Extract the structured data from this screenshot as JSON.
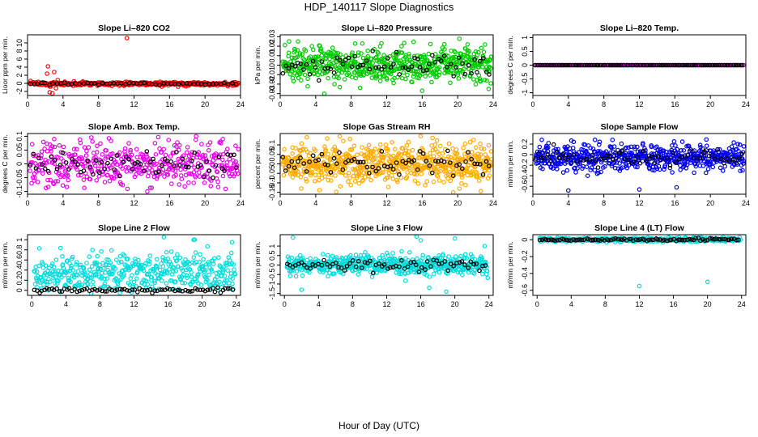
{
  "figure": {
    "title": "HDP_140117  Slope Diagnostics",
    "xlabel": "Hour of Day (UTC)"
  },
  "chart_data": [
    {
      "type": "scatter",
      "title": "Slope Li–820 CO2",
      "ylabel": "Lioor ppm per min.",
      "xlim": [
        0,
        24
      ],
      "ylim": [
        -3,
        12
      ],
      "yticks": [
        -2,
        0,
        2,
        4,
        6,
        8,
        10
      ],
      "xticks": [
        0,
        4,
        8,
        12,
        16,
        20,
        24
      ],
      "main_color": "#ff0000",
      "ref_color": "#000000",
      "main_density": 350,
      "ref_density": 55,
      "center": -0.1,
      "spread": 0.25,
      "ref_spread": 0.15,
      "outliers": [
        [
          2.3,
          4.2
        ],
        [
          2.5,
          -2.2
        ],
        [
          3.0,
          2.8
        ],
        [
          2.8,
          -2.5
        ],
        [
          2.2,
          2.4
        ],
        [
          3.2,
          -1.2
        ],
        [
          2.6,
          -0.8
        ],
        [
          3.4,
          0.8
        ],
        [
          11.2,
          11.2
        ]
      ]
    },
    {
      "type": "scatter",
      "title": "Slope Li–820 Pressure",
      "ylabel": "kPa per min.",
      "xlim": [
        0,
        24
      ],
      "ylim": [
        -0.032,
        0.032
      ],
      "yticks": [
        -0.03,
        -0.02,
        -0.01,
        0.0,
        0.01,
        0.02,
        0.03
      ],
      "xticks": [
        0,
        4,
        8,
        12,
        16,
        20,
        24
      ],
      "main_color": "#00cc00",
      "ref_color": "#000000",
      "main_density": 600,
      "ref_density": 70,
      "center": 0.0,
      "spread": 0.009,
      "ref_spread": 0.006,
      "outliers": [
        [
          1,
          0.025
        ],
        [
          23.5,
          -0.025
        ],
        [
          9,
          -0.024
        ],
        [
          16,
          -0.027
        ],
        [
          18.5,
          0.022
        ]
      ]
    },
    {
      "type": "scatter",
      "title": "Slope Li–820 Temp.",
      "ylabel": "degrees C per min.",
      "xlim": [
        0,
        24
      ],
      "ylim": [
        -1.1,
        1.1
      ],
      "yticks": [
        -1.0,
        -0.5,
        0.0,
        0.5,
        1.0
      ],
      "xticks": [
        0,
        4,
        8,
        12,
        16,
        20,
        24
      ],
      "main_color": "#cc00cc",
      "ref_color": "#000000",
      "main_density": 150,
      "ref_density": 90,
      "center": 0.0,
      "spread": 0.0,
      "ref_spread": 0.0,
      "outliers": []
    },
    {
      "type": "scatter",
      "title": "Slope Amb. Box Temp.",
      "ylabel": "degrees C per min.",
      "xlim": [
        0,
        24
      ],
      "ylim": [
        -0.11,
        0.11
      ],
      "yticks": [
        -0.1,
        -0.05,
        0.0,
        0.05,
        0.1
      ],
      "xticks": [
        0,
        4,
        8,
        12,
        16,
        20,
        24
      ],
      "main_color": "#ee00ee",
      "ref_color": "#000000",
      "main_density": 450,
      "ref_density": 70,
      "center": 0.0,
      "spread": 0.04,
      "ref_spread": 0.025,
      "outliers": [
        [
          19,
          0.1
        ],
        [
          22,
          0.09
        ],
        [
          13.5,
          -0.1
        ],
        [
          3,
          0.09
        ]
      ]
    },
    {
      "type": "scatter",
      "title": "Slope Gas Stream RH",
      "ylabel": "percent per min.",
      "xlim": [
        0,
        24
      ],
      "ylim": [
        -0.16,
        0.16
      ],
      "yticks": [
        -0.15,
        -0.1,
        -0.05,
        0.0,
        0.05,
        0.1
      ],
      "xticks": [
        0,
        4,
        8,
        12,
        16,
        20,
        24
      ],
      "main_color": "#ffaa00",
      "ref_color": "#000000",
      "main_density": 650,
      "ref_density": 70,
      "center": 0.0,
      "spread": 0.05,
      "ref_spread": 0.03,
      "outliers": [
        [
          19.5,
          -0.15
        ],
        [
          3,
          0.14
        ]
      ]
    },
    {
      "type": "scatter",
      "title": "Slope Sample Flow",
      "ylabel": "ml/min per min.",
      "xlim": [
        0,
        24
      ],
      "ylim": [
        -0.75,
        0.4
      ],
      "yticks": [
        -0.6,
        -0.4,
        -0.2,
        0.0,
        0.2
      ],
      "xticks": [
        0,
        4,
        8,
        12,
        16,
        20,
        24
      ],
      "main_color": "#0000ee",
      "ref_color": "#000000",
      "main_density": 600,
      "ref_density": 70,
      "center": -0.05,
      "spread": 0.12,
      "ref_spread": 0.08,
      "outliers": [
        [
          4,
          -0.68
        ],
        [
          12,
          -0.66
        ],
        [
          16.2,
          -0.62
        ],
        [
          1,
          0.28
        ],
        [
          7,
          0.28
        ]
      ]
    },
    {
      "type": "scatter",
      "title": "Slope Line 2 Flow",
      "ylabel": "ml/min per min.",
      "xlim": [
        -0.5,
        24.5
      ],
      "ylim": [
        -0.1,
        1.1
      ],
      "yticks": [
        0.0,
        0.2,
        0.4,
        0.6,
        0.8,
        1.0
      ],
      "xticks": [
        0,
        4,
        8,
        12,
        16,
        20,
        24
      ],
      "main_color": "#00dddd",
      "ref_color": "#000000",
      "main_density": 450,
      "ref_density": 80,
      "center": 0.35,
      "spread": 0.2,
      "ref_spread": 0.02,
      "ref_center": 0.01,
      "outliers": [
        [
          15.5,
          1.05
        ],
        [
          19,
          1.0
        ],
        [
          23.5,
          0.95
        ]
      ]
    },
    {
      "type": "scatter",
      "title": "Slope Line 3 Flow",
      "ylabel": "ml/min per min.",
      "xlim": [
        -0.5,
        24.5
      ],
      "ylim": [
        -1.6,
        1.6
      ],
      "yticks": [
        -1.5,
        -1.0,
        -0.5,
        0.0,
        0.5,
        1.0
      ],
      "xticks": [
        0,
        4,
        8,
        12,
        16,
        20,
        24
      ],
      "main_color": "#00dddd",
      "ref_color": "#000000",
      "main_density": 550,
      "ref_density": 70,
      "center": 0.0,
      "spread": 0.25,
      "ref_spread": 0.15,
      "outliers": [
        [
          1,
          1.45
        ],
        [
          15.5,
          1.5
        ],
        [
          16,
          1.3
        ],
        [
          20,
          1.4
        ],
        [
          23.5,
          1.0
        ],
        [
          2,
          -1.3
        ],
        [
          17,
          -1.2
        ],
        [
          19,
          -1.4
        ]
      ]
    },
    {
      "type": "scatter",
      "title": "Slope Line 4 (LT) Flow",
      "ylabel": "ml/min per min.",
      "xlim": [
        -0.5,
        24.5
      ],
      "ylim": [
        -0.66,
        0.06
      ],
      "yticks": [
        -0.6,
        -0.4,
        -0.2,
        0.0
      ],
      "xticks": [
        0,
        4,
        8,
        12,
        16,
        20,
        24
      ],
      "main_color": "#00dddd",
      "ref_color": "#000000",
      "main_density": 400,
      "ref_density": 90,
      "center": 0.0,
      "spread": 0.012,
      "ref_spread": 0.008,
      "outliers": [
        [
          4,
          -0.65
        ],
        [
          12,
          -0.55
        ],
        [
          20,
          -0.5
        ]
      ]
    }
  ]
}
